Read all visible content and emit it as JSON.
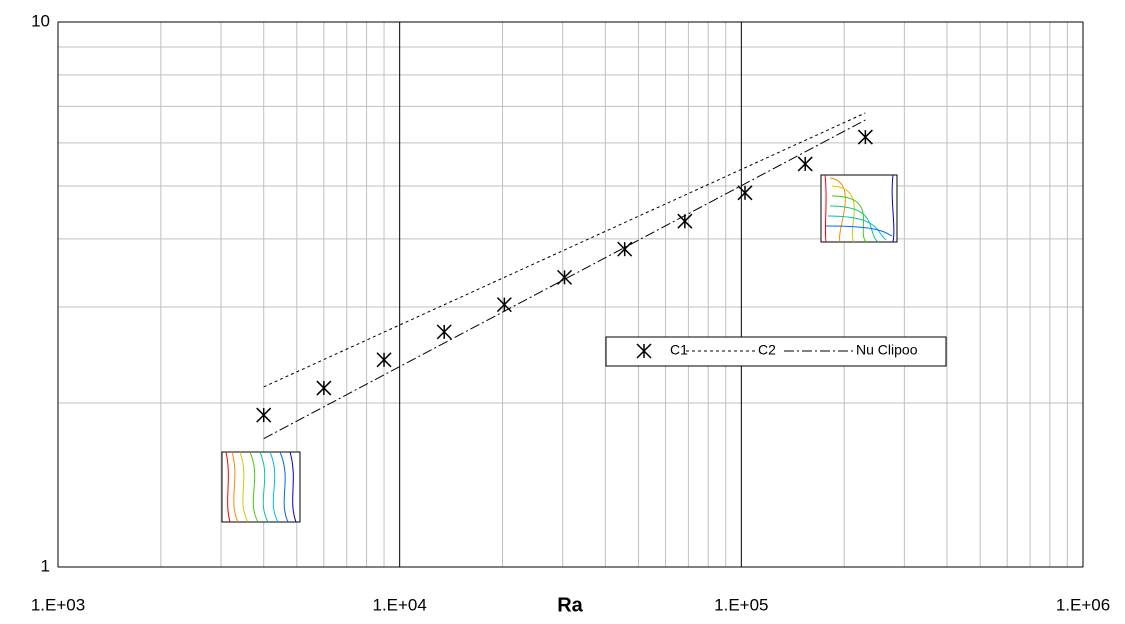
{
  "chart_data": {
    "type": "scatter-line",
    "x_label": "Ra",
    "xscale": "log",
    "yscale": "log",
    "xlim": [
      1000,
      1000000
    ],
    "ylim": [
      1,
      10
    ],
    "xticks": [
      {
        "value": 1000,
        "label": "1.E+03"
      },
      {
        "value": 10000,
        "label": "1.E+04"
      },
      {
        "value": 100000,
        "label": "1.E+05"
      },
      {
        "value": 1000000,
        "label": "1.E+06"
      }
    ],
    "yticks": [
      1,
      10
    ],
    "grid": true,
    "minor_grid": true,
    "series": [
      {
        "name": "C1",
        "style": "marker",
        "color": "#000000",
        "x": [
          4000,
          6000,
          9000,
          13500,
          20250,
          30375,
          45560,
          68340,
          102500,
          153800,
          230700
        ],
        "values": [
          1.9,
          2.13,
          2.4,
          2.7,
          3.03,
          3.4,
          3.83,
          4.31,
          4.86,
          5.49,
          6.15
        ]
      },
      {
        "name": "C2",
        "style": "dotted",
        "color": "#000000",
        "x": [
          4000,
          230700
        ],
        "values": [
          2.14,
          6.81
        ]
      },
      {
        "name": "Nu Clipoo",
        "style": "dashdot",
        "color": "#000000",
        "x": [
          4000,
          230700
        ],
        "values": [
          1.72,
          6.61
        ]
      }
    ]
  }
}
